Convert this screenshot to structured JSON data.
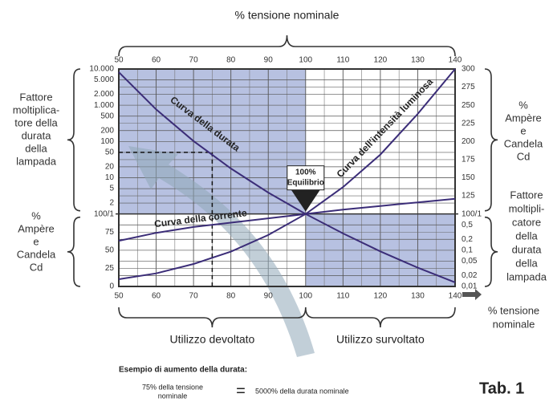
{
  "chart_data": {
    "type": "line",
    "title": "% tensione nominale",
    "x_label": [
      "% tensione",
      "nominale"
    ],
    "left_labels_upper": [
      "Fattore",
      "moltiplica-",
      "tore della",
      "durata",
      "della",
      "lampada"
    ],
    "left_labels_lower": [
      "%",
      "Ampère",
      "e",
      "Candela",
      "Cd"
    ],
    "right_labels_upper": [
      "%",
      "Ampère",
      "e",
      "Candela",
      "Cd"
    ],
    "right_labels_lower": [
      "Fattore",
      "moltipli-",
      "catore",
      "della",
      "durata",
      "della",
      "lampada"
    ],
    "regions": [
      "Utilizzo devoltato",
      "Utilizzo survoltato"
    ],
    "x": [
      50,
      60,
      70,
      80,
      90,
      100,
      110,
      120,
      130,
      140
    ],
    "xlim": [
      50,
      140
    ],
    "xticks": [
      50,
      60,
      70,
      80,
      90,
      100,
      110,
      120,
      130,
      140
    ],
    "xminor": [
      55,
      65,
      75,
      85,
      95,
      105,
      115,
      125,
      135
    ],
    "ylim": [
      0.01,
      10000
    ],
    "ylog": true,
    "yticks": [
      {
        "value": 10000,
        "label": "10.000"
      },
      {
        "value": 5000,
        "label": "5.000"
      },
      {
        "value": 2000,
        "label": "2.000"
      },
      {
        "value": 1000,
        "label": "1.000"
      },
      500,
      200,
      100,
      50,
      20,
      10,
      5,
      2,
      {
        "value": 1,
        "label": "100/1"
      }
    ],
    "yticks_right": [
      {
        "value": 1,
        "label": "100/1"
      },
      {
        "value": 0.5,
        "label": "0,5"
      },
      {
        "value": 0.2,
        "label": "0,2"
      },
      {
        "value": 0.1,
        "label": "0,1"
      },
      {
        "value": 0.05,
        "label": "0,05"
      },
      {
        "value": 0.02,
        "label": "0,02"
      },
      {
        "value": 0.01,
        "label": "0,01"
      }
    ],
    "y2lim": [
      0,
      300
    ],
    "y2ticks": [
      125,
      150,
      175,
      200,
      225,
      250,
      275,
      300
    ],
    "y2ticks_left": [
      0,
      25,
      50,
      75
    ],
    "grid": true,
    "series": [
      {
        "name": "Curva della durata",
        "color": "#3b2d78",
        "values": [
          8192,
          766,
          103,
          18,
          3.9,
          1,
          0.29,
          0.093,
          0.033,
          0.013
        ]
      },
      {
        "name": "Curva della corrente",
        "color": "#3b2d78",
        "axis": "y2",
        "values": [
          63,
          74,
          82,
          88,
          94,
          100,
          106,
          111,
          116,
          121
        ]
      },
      {
        "name": "Curva dell'intensità luminosa",
        "color": "#3b2d78",
        "axis": "y2",
        "values": [
          10,
          18,
          31,
          48,
          71,
          100,
          137,
          182,
          238,
          300
        ]
      }
    ],
    "shade_color": "#aab6dc",
    "shaded": [
      {
        "xlim": [
          50,
          100
        ],
        "ylim": [
          1,
          10000
        ]
      },
      {
        "xlim": [
          100,
          140
        ],
        "ylim": [
          0.01,
          1
        ]
      }
    ],
    "highlight": {
      "x": 75,
      "y": 50
    },
    "marker": {
      "x": 100,
      "label": [
        "100%",
        "Equilibrio"
      ]
    },
    "example": {
      "heading": "Esempio di aumento della durata:",
      "left": [
        "75% della tensione",
        "nominale"
      ],
      "sign": "=",
      "right": "5000% della durata nominale"
    },
    "tab": "Tab. 1"
  }
}
